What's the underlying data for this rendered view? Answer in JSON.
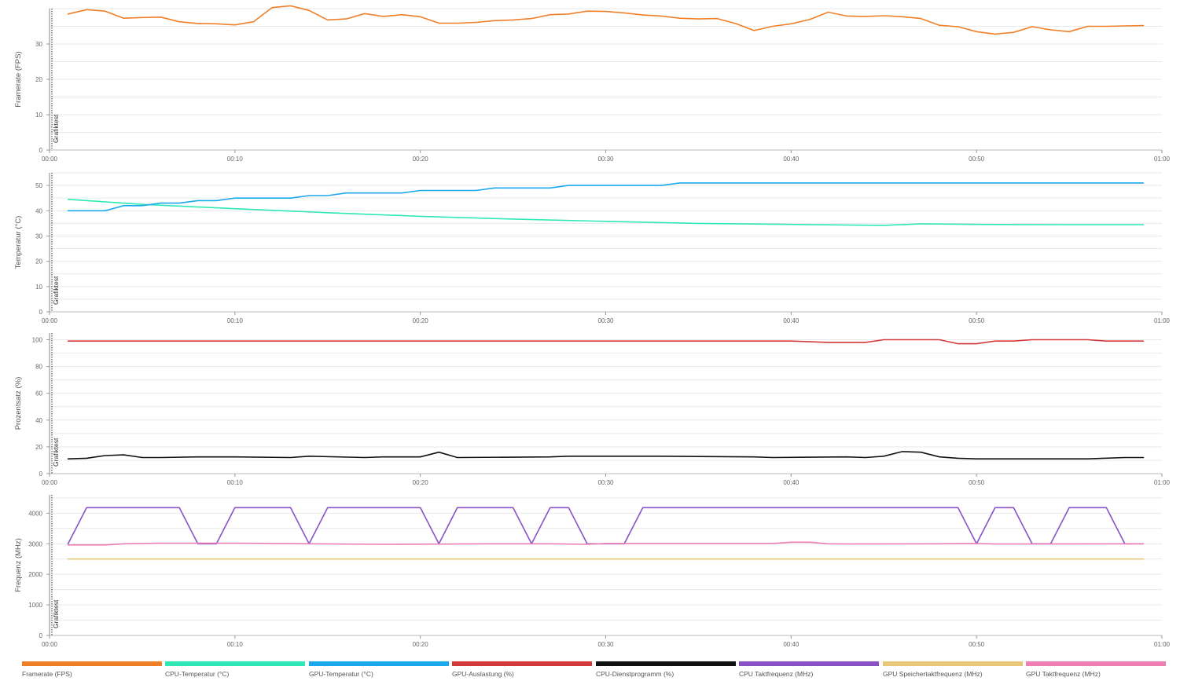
{
  "chart_data": [
    {
      "type": "line",
      "ylabel": "Framerate (FPS)",
      "ylim": [
        0,
        40
      ],
      "yticks": [
        0,
        10,
        20,
        30
      ],
      "marker_label": "Grafiktest",
      "x_unit": "minutes",
      "xlim": [
        0,
        60
      ],
      "xtick_labels": [
        "00:00",
        "00:10",
        "00:20",
        "00:30",
        "00:40",
        "00:50",
        "01:00"
      ],
      "grid": true,
      "series": [
        {
          "name": "Framerate (FPS)",
          "color": "#f07f28",
          "x": [
            1,
            2,
            3,
            4,
            5,
            6,
            7,
            8,
            9,
            10,
            11,
            12,
            13,
            14,
            15,
            16,
            17,
            18,
            19,
            20,
            21,
            22,
            23,
            24,
            25,
            26,
            27,
            28,
            29,
            30,
            31,
            32,
            33,
            34,
            35,
            36,
            37,
            38,
            39,
            40,
            41,
            42,
            43,
            44,
            45,
            46,
            47,
            48,
            49,
            50,
            51,
            52,
            53,
            54,
            55,
            56,
            57,
            58,
            59
          ],
          "values": [
            38.5,
            39.7,
            39.3,
            37.3,
            37.5,
            37.6,
            36.3,
            35.8,
            35.7,
            35.4,
            36.3,
            40.3,
            40.8,
            39.5,
            36.8,
            37.1,
            38.6,
            37.8,
            38.3,
            37.7,
            35.9,
            35.9,
            36.1,
            36.6,
            36.8,
            37.2,
            38.3,
            38.5,
            39.3,
            39.2,
            38.8,
            38.2,
            37.9,
            37.3,
            37.1,
            37.2,
            35.8,
            33.8,
            35.0,
            35.7,
            36.9,
            39.0,
            37.9,
            37.8,
            38.0,
            37.7,
            37.2,
            35.3,
            34.9,
            33.5,
            32.8,
            33.3,
            34.9,
            34.0,
            33.5,
            35.0,
            35.0,
            35.1,
            35.2
          ]
        }
      ]
    },
    {
      "type": "line",
      "ylabel": "Temperatur (°C)",
      "ylim": [
        0,
        55
      ],
      "yticks": [
        0,
        10,
        20,
        30,
        40,
        50
      ],
      "marker_label": "Grafiktest",
      "x_unit": "minutes",
      "xlim": [
        0,
        60
      ],
      "xtick_labels": [
        "00:00",
        "00:10",
        "00:20",
        "00:30",
        "00:40",
        "00:50",
        "01:00"
      ],
      "grid": true,
      "series": [
        {
          "name": "CPU-Temperatur (°C)",
          "color": "#2ee8b6",
          "x": [
            1,
            5,
            10,
            15,
            20,
            25,
            30,
            35,
            40,
            45,
            47,
            50,
            55,
            59
          ],
          "values": [
            44.5,
            42.5,
            40.8,
            39.2,
            37.8,
            36.7,
            35.8,
            35.0,
            34.6,
            34.2,
            34.8,
            34.6,
            34.5,
            34.5
          ]
        },
        {
          "name": "GPU-Temperatur (°C)",
          "color": "#1ba9ee",
          "x": [
            1,
            3,
            4,
            5,
            6,
            7,
            8,
            9,
            10,
            11,
            12,
            13,
            14,
            15,
            16,
            17,
            18,
            19,
            20,
            21,
            22,
            23,
            24,
            25,
            26,
            27,
            28,
            29,
            30,
            31,
            32,
            33,
            34,
            35,
            59
          ],
          "values": [
            40,
            40,
            42,
            42,
            43,
            43,
            44,
            44,
            45,
            45,
            45,
            45,
            46,
            46,
            47,
            47,
            47,
            47,
            48,
            48,
            48,
            48,
            49,
            49,
            49,
            49,
            50,
            50,
            50,
            50,
            50,
            50,
            51,
            51,
            51
          ]
        }
      ]
    },
    {
      "type": "line",
      "ylabel": "Prozentsatz (%)",
      "ylim": [
        0,
        105
      ],
      "yticks": [
        0,
        20,
        40,
        60,
        80,
        100
      ],
      "marker_label": "Grafiktest",
      "x_unit": "minutes",
      "xlim": [
        0,
        60
      ],
      "xtick_labels": [
        "00:00",
        "00:10",
        "00:20",
        "00:30",
        "00:40",
        "00:50",
        "01:00"
      ],
      "grid": true,
      "series": [
        {
          "name": "GPU-Auslastung (%)",
          "color": "#d33a3a",
          "x": [
            1,
            10,
            20,
            30,
            40,
            42,
            44,
            45,
            46,
            48,
            49,
            50,
            51,
            52,
            53,
            54,
            56,
            57,
            58,
            59
          ],
          "values": [
            99,
            99,
            99,
            99,
            99,
            98,
            98,
            100,
            100,
            100,
            97,
            97,
            99,
            99,
            100,
            100,
            100,
            99,
            99,
            99
          ]
        },
        {
          "name": "CPU-Dienstprogramm (%)",
          "color": "#111111",
          "x": [
            1,
            2,
            3,
            4,
            5,
            6,
            8,
            10,
            13,
            14,
            17,
            18,
            20,
            21,
            22,
            27,
            28,
            33,
            38,
            39,
            43,
            44,
            45,
            46,
            47,
            48,
            49,
            50,
            53,
            56,
            58,
            59
          ],
          "values": [
            11,
            11.5,
            13.5,
            14,
            12,
            12,
            12.5,
            12.5,
            12,
            13,
            12,
            12.5,
            12.5,
            16,
            12,
            12.5,
            13,
            13,
            12.5,
            12,
            12.5,
            12,
            13,
            16.5,
            16,
            12.5,
            11.5,
            11,
            11,
            11,
            12,
            12
          ]
        }
      ]
    },
    {
      "type": "line",
      "ylabel": "Frequenz (MHz)",
      "ylim": [
        0,
        4600
      ],
      "yticks": [
        0,
        1000,
        2000,
        3000,
        4000
      ],
      "marker_label": "Grafiktest",
      "x_unit": "minutes",
      "xlim": [
        0,
        60
      ],
      "xtick_labels": [
        "00:00",
        "00:10",
        "00:20",
        "00:30",
        "00:40",
        "00:50",
        "01:00"
      ],
      "grid": true,
      "series": [
        {
          "name": "CPU Taktfrequenz (MHz)",
          "color": "#8b52c8",
          "x": [
            1,
            2,
            7,
            8,
            9,
            10,
            13,
            14,
            15,
            20,
            21,
            22,
            25,
            26,
            27,
            28,
            29,
            30,
            31,
            32,
            38,
            39,
            49,
            50,
            51,
            52,
            53,
            54,
            55,
            56,
            57,
            58,
            59
          ],
          "values": [
            3000,
            4180,
            4180,
            3000,
            3000,
            4180,
            4180,
            3000,
            4180,
            4180,
            3000,
            4180,
            4180,
            3000,
            4180,
            4180,
            3000,
            3000,
            3000,
            4180,
            4180,
            4180,
            4180,
            3000,
            4180,
            4180,
            3000,
            3000,
            4180,
            4180,
            4180,
            3000,
            3000
          ]
        },
        {
          "name": "GPU Speichertaktfrequenz (MHz)",
          "color": "#e8c878",
          "x": [
            1,
            59
          ],
          "values": [
            2500,
            2500
          ]
        },
        {
          "name": "GPU Taktfrequenz (MHz)",
          "color": "#ec7eb4",
          "x": [
            1,
            3,
            4,
            6,
            10,
            14,
            18,
            24,
            27,
            29,
            30,
            39,
            40,
            41,
            42,
            43,
            48,
            50,
            51,
            53,
            59
          ],
          "values": [
            2960,
            2960,
            3000,
            3020,
            3020,
            3000,
            2980,
            3000,
            3000,
            2980,
            3010,
            3010,
            3050,
            3050,
            3000,
            2990,
            3000,
            3010,
            2990,
            2990,
            3000
          ]
        }
      ]
    }
  ],
  "legend": [
    {
      "label": "Framerate (FPS)",
      "color": "#f07f28"
    },
    {
      "label": "CPU-Temperatur (°C)",
      "color": "#2ee8b6"
    },
    {
      "label": "GPU-Temperatur (°C)",
      "color": "#1ba9ee"
    },
    {
      "label": "GPU-Auslastung (%)",
      "color": "#d33a3a"
    },
    {
      "label": "CPU-Dienstprogramm (%)",
      "color": "#111111"
    },
    {
      "label": "CPU Taktfrequenz (MHz)",
      "color": "#8b52c8"
    },
    {
      "label": "GPU Speichertaktfrequenz (MHz)",
      "color": "#e8c878"
    },
    {
      "label": "GPU Taktfrequenz (MHz)",
      "color": "#ec7eb4"
    }
  ]
}
